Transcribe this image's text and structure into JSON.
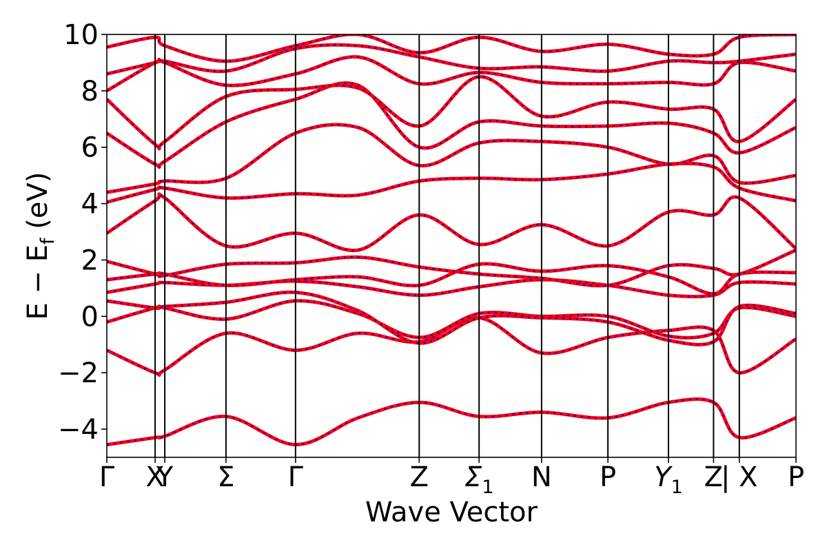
{
  "chart_data": {
    "type": "line",
    "xlabel": "Wave Vector",
    "ylabel": "E − E",
    "ylabel_subscript": "f",
    "ylabel_unit": "(eV)",
    "ylim": [
      -5,
      10
    ],
    "xlim": [
      0,
      10.7
    ],
    "yticks": [
      -4,
      -2,
      0,
      2,
      4,
      6,
      8,
      10
    ],
    "ytick_labels": [
      "−4",
      "−2",
      "0",
      "2",
      "4",
      "6",
      "8",
      "10"
    ],
    "kpoints": [
      {
        "label": "Γ",
        "pos": 0.0
      },
      {
        "label": "X",
        "pos": 0.75
      },
      {
        "label": "Y",
        "pos": 0.9
      },
      {
        "label": "Σ",
        "pos": 1.85
      },
      {
        "label": "Γ",
        "pos": 2.93
      },
      {
        "label": "Z",
        "pos": 4.85
      },
      {
        "label": "Σ",
        "sub": "1",
        "pos": 5.78
      },
      {
        "label": "N",
        "pos": 6.75
      },
      {
        "label": "P",
        "pos": 7.78
      },
      {
        "label": "Y",
        "sub": "1",
        "pos": 8.72
      },
      {
        "label": "Z",
        "pos": 9.42
      },
      {
        "label": "| X",
        "pos": 9.82
      },
      {
        "label": "P",
        "pos": 10.7
      }
    ],
    "grid": false,
    "legend": "none",
    "colors": {
      "dft": "#ff0000",
      "fit": "#0000ff"
    },
    "series": [
      {
        "x": [
          0,
          0.75,
          0.9,
          1.85,
          2.93,
          3.9,
          4.85,
          5.78,
          6.75,
          7.78,
          8.72,
          9.42,
          9.82,
          10.7
        ],
        "values": [
          -4.55,
          -4.3,
          -4.25,
          -3.55,
          -4.55,
          -3.6,
          -3.05,
          -3.55,
          -3.4,
          -3.6,
          -3.05,
          -3.05,
          -4.3,
          -3.6
        ]
      },
      {
        "x": [
          0,
          0.75,
          0.9,
          1.85,
          2.93,
          3.9,
          4.85,
          5.78,
          6.75,
          7.78,
          8.72,
          9.42,
          9.82,
          10.7
        ],
        "values": [
          -1.2,
          -2.0,
          -1.9,
          -0.6,
          -1.2,
          -0.6,
          -0.9,
          -0.05,
          -1.3,
          -0.75,
          -0.5,
          -0.5,
          -2.0,
          -0.8
        ]
      },
      {
        "x": [
          0,
          0.75,
          0.9,
          1.85,
          2.93,
          3.9,
          4.85,
          5.78,
          6.75,
          7.78,
          8.72,
          9.42,
          9.82,
          10.7
        ],
        "values": [
          -0.2,
          0.3,
          0.3,
          -0.1,
          0.55,
          0.1,
          -0.75,
          0.1,
          0.0,
          0.0,
          -0.7,
          -0.6,
          0.3,
          0.0
        ]
      },
      {
        "x": [
          0,
          0.75,
          0.9,
          1.85,
          2.93,
          3.9,
          4.85,
          5.78,
          6.75,
          7.78,
          8.72,
          9.42,
          9.82,
          10.7
        ],
        "values": [
          0.55,
          0.3,
          0.35,
          0.5,
          0.85,
          0.2,
          -0.95,
          -0.05,
          -0.05,
          -0.2,
          -0.85,
          -0.9,
          0.35,
          0.1
        ]
      },
      {
        "x": [
          0,
          0.75,
          0.9,
          1.85,
          2.93,
          3.9,
          4.85,
          5.78,
          6.75,
          7.78,
          8.72,
          9.42,
          9.82,
          10.7
        ],
        "values": [
          0.85,
          1.15,
          1.2,
          1.1,
          1.25,
          1.05,
          0.75,
          1.05,
          1.3,
          1.1,
          0.75,
          0.75,
          1.2,
          1.15
        ]
      },
      {
        "x": [
          0,
          0.75,
          0.9,
          1.85,
          2.93,
          3.9,
          4.85,
          5.78,
          6.75,
          7.78,
          8.72,
          9.42,
          9.82,
          10.7
        ],
        "values": [
          1.3,
          1.5,
          1.5,
          1.1,
          1.3,
          1.4,
          1.1,
          1.85,
          1.6,
          1.8,
          1.4,
          0.8,
          1.5,
          1.55
        ]
      },
      {
        "x": [
          0,
          0.75,
          0.9,
          1.85,
          2.93,
          3.9,
          4.85,
          5.78,
          6.75,
          7.78,
          8.72,
          9.42,
          9.82,
          10.7
        ],
        "values": [
          1.95,
          1.5,
          1.45,
          1.85,
          1.9,
          2.1,
          1.75,
          1.5,
          1.35,
          1.1,
          1.8,
          1.7,
          1.5,
          2.35
        ]
      },
      {
        "x": [
          0,
          0.75,
          0.9,
          1.85,
          2.93,
          3.9,
          4.85,
          5.78,
          6.75,
          7.78,
          8.72,
          9.42,
          9.82,
          10.7
        ],
        "values": [
          2.95,
          4.1,
          4.2,
          2.5,
          2.95,
          2.35,
          3.6,
          2.55,
          3.25,
          2.5,
          3.7,
          3.6,
          4.2,
          2.4
        ]
      },
      {
        "x": [
          0,
          0.75,
          0.9,
          1.85,
          2.93,
          3.9,
          4.85,
          5.78,
          6.75,
          7.78,
          8.72,
          9.42,
          9.82,
          10.7
        ],
        "values": [
          4.05,
          4.5,
          4.55,
          4.2,
          4.35,
          4.3,
          4.8,
          4.9,
          4.85,
          5.05,
          5.4,
          5.3,
          4.55,
          4.1
        ]
      },
      {
        "x": [
          0,
          0.75,
          0.9,
          1.85,
          2.93,
          3.9,
          4.85,
          5.78,
          6.75,
          7.78,
          8.72,
          9.42,
          9.82,
          10.7
        ],
        "values": [
          4.4,
          4.7,
          4.8,
          4.9,
          6.5,
          6.7,
          5.35,
          6.15,
          6.2,
          6.0,
          5.4,
          5.7,
          4.75,
          5.0
        ]
      },
      {
        "x": [
          0,
          0.75,
          0.9,
          1.85,
          2.93,
          3.9,
          4.85,
          5.78,
          6.75,
          7.78,
          8.72,
          9.42,
          9.82,
          10.7
        ],
        "values": [
          6.5,
          5.4,
          5.5,
          6.9,
          7.7,
          8.2,
          6.0,
          6.9,
          6.75,
          6.75,
          6.85,
          6.5,
          5.8,
          6.7
        ]
      },
      {
        "x": [
          0,
          0.75,
          0.9,
          1.85,
          2.93,
          3.9,
          4.85,
          5.78,
          6.75,
          7.78,
          8.72,
          9.42,
          9.82,
          10.7
        ],
        "values": [
          7.7,
          6.1,
          6.2,
          7.8,
          8.05,
          8.1,
          6.75,
          8.5,
          7.1,
          7.6,
          7.35,
          7.35,
          6.2,
          7.7
        ]
      },
      {
        "x": [
          0,
          0.75,
          0.9,
          1.85,
          2.93,
          3.9,
          4.85,
          5.78,
          6.75,
          7.78,
          8.72,
          9.42,
          9.82,
          10.7
        ],
        "values": [
          8.0,
          9.0,
          9.0,
          8.2,
          8.6,
          9.2,
          8.25,
          8.65,
          8.3,
          8.25,
          8.3,
          8.25,
          9.0,
          8.7
        ]
      },
      {
        "x": [
          0,
          0.75,
          0.9,
          1.85,
          2.93,
          3.9,
          4.85,
          5.78,
          6.75,
          7.78,
          8.72,
          9.42,
          9.82,
          10.7
        ],
        "values": [
          8.6,
          9.0,
          9.05,
          8.7,
          9.5,
          9.6,
          9.2,
          8.8,
          8.85,
          8.7,
          9.05,
          9.0,
          9.05,
          9.3
        ]
      },
      {
        "x": [
          0,
          0.75,
          0.9,
          1.85,
          2.93,
          3.9,
          4.85,
          5.78,
          6.75,
          7.78,
          8.72,
          9.42,
          9.82,
          10.7
        ],
        "values": [
          9.55,
          9.9,
          9.6,
          9.05,
          9.6,
          10.0,
          9.35,
          9.9,
          9.4,
          9.65,
          9.3,
          9.3,
          9.9,
          10.0
        ]
      }
    ]
  }
}
